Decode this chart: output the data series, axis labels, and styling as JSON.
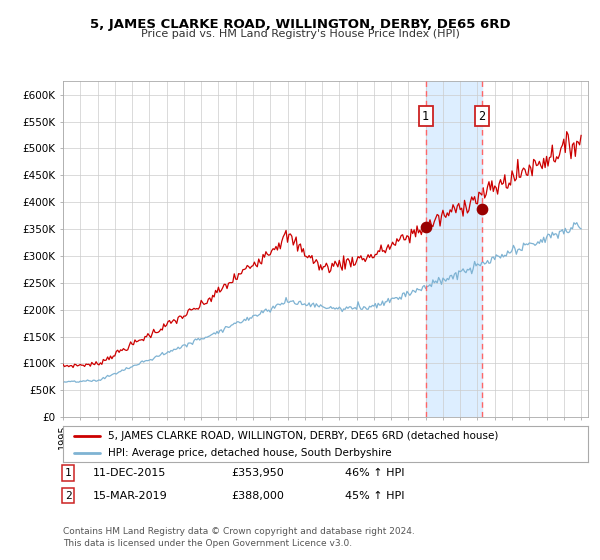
{
  "title": "5, JAMES CLARKE ROAD, WILLINGTON, DERBY, DE65 6RD",
  "subtitle": "Price paid vs. HM Land Registry's House Price Index (HPI)",
  "legend_line1": "5, JAMES CLARKE ROAD, WILLINGTON, DERBY, DE65 6RD (detached house)",
  "legend_line2": "HPI: Average price, detached house, South Derbyshire",
  "transaction1_date": "11-DEC-2015",
  "transaction1_price": "£353,950",
  "transaction1_hpi": "46% ↑ HPI",
  "transaction2_date": "15-MAR-2019",
  "transaction2_price": "£388,000",
  "transaction2_hpi": "45% ↑ HPI",
  "footnote": "Contains HM Land Registry data © Crown copyright and database right 2024.\nThis data is licensed under the Open Government Licence v3.0.",
  "ylim": [
    0,
    625000
  ],
  "yticks": [
    0,
    50000,
    100000,
    150000,
    200000,
    250000,
    300000,
    350000,
    400000,
    450000,
    500000,
    550000,
    600000
  ],
  "ytick_labels": [
    "£0",
    "£50K",
    "£100K",
    "£150K",
    "£200K",
    "£250K",
    "£300K",
    "£350K",
    "£400K",
    "£450K",
    "£500K",
    "£550K",
    "£600K"
  ],
  "red_line_color": "#cc0000",
  "blue_line_color": "#7fb3d3",
  "dot_color": "#990000",
  "vline_color": "#ff6666",
  "shade_color": "#ddeeff",
  "transaction1_year": 2016.0,
  "transaction2_year": 2019.25,
  "t1_price": 353950,
  "t2_price": 388000,
  "start_year": 1995,
  "end_year": 2025
}
